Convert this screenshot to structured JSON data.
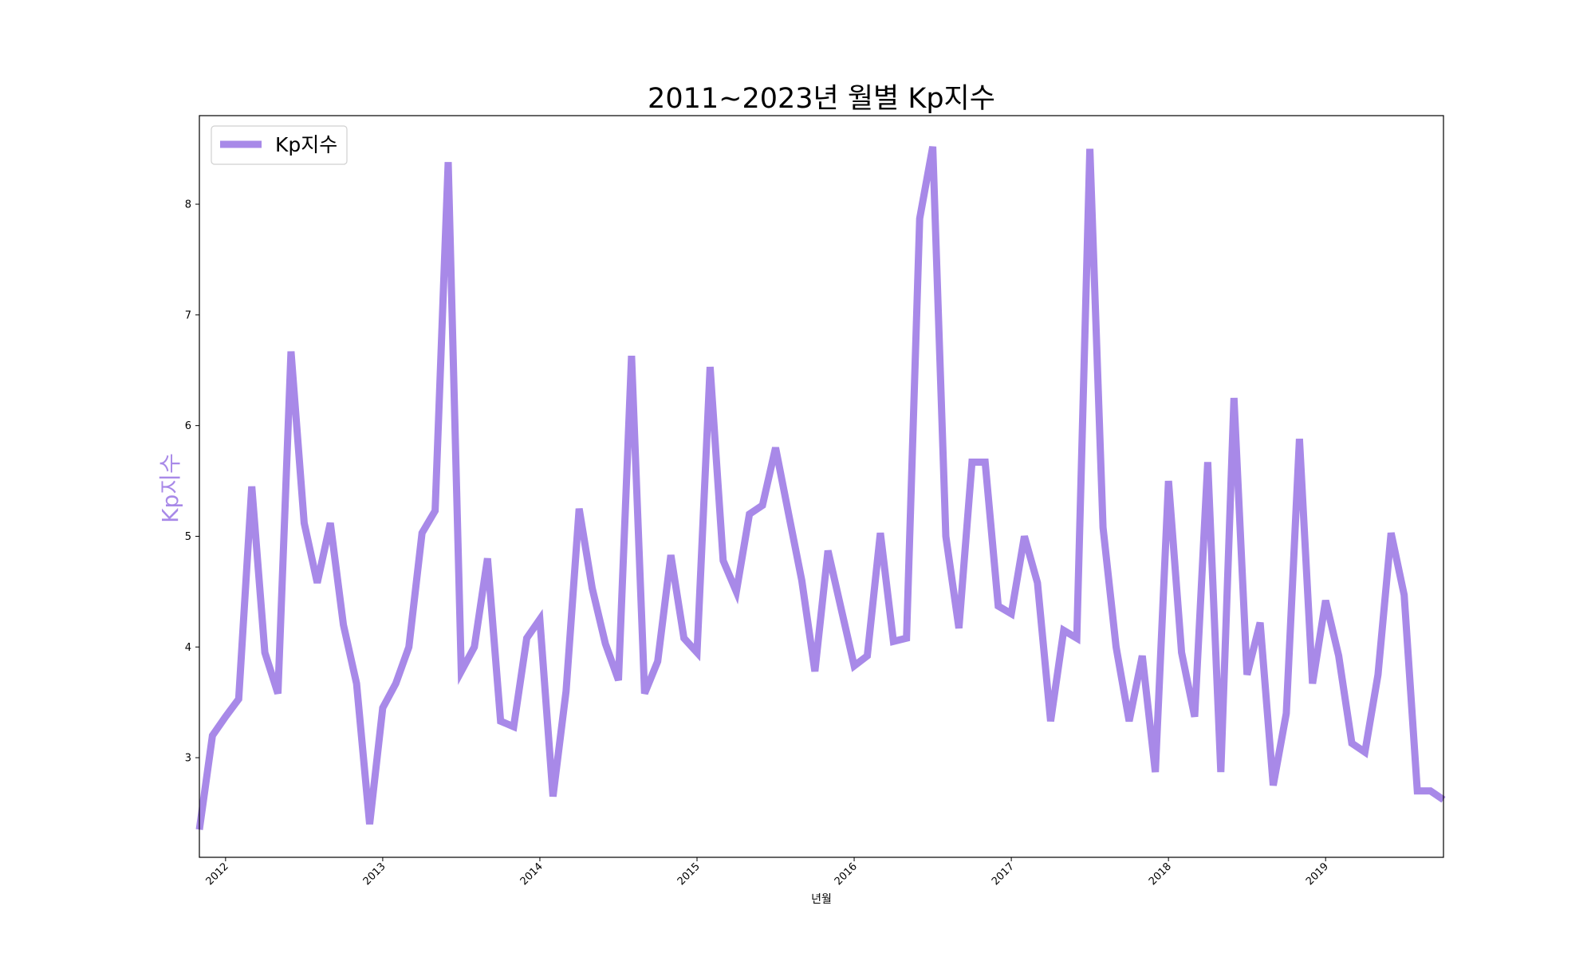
{
  "chart_data": {
    "type": "line",
    "title": "2011~2023년 월별 Kp지수",
    "xlabel": "년월",
    "ylabel": "Kp지수",
    "ylim": [
      2.1,
      8.8
    ],
    "xlim": [
      "2011-11",
      "2019-10"
    ],
    "grid": false,
    "legend_position": "top-left",
    "line_color": "#a889e8",
    "y_ticks": [
      3,
      4,
      5,
      6,
      7,
      8
    ],
    "x_ticks": [
      "2012",
      "2013",
      "2014",
      "2015",
      "2016",
      "2017",
      "2018",
      "2019"
    ],
    "series": [
      {
        "name": "Kp지수",
        "x": [
          "2011-11",
          "2011-12",
          "2012-01",
          "2012-02",
          "2012-03",
          "2012-04",
          "2012-05",
          "2012-06",
          "2012-07",
          "2012-08",
          "2012-09",
          "2012-10",
          "2012-11",
          "2012-12",
          "2013-01",
          "2013-02",
          "2013-03",
          "2013-04",
          "2013-05",
          "2013-06",
          "2013-07",
          "2013-08",
          "2013-09",
          "2013-10",
          "2013-11",
          "2013-12",
          "2014-01",
          "2014-02",
          "2014-03",
          "2014-04",
          "2014-05",
          "2014-06",
          "2014-07",
          "2014-08",
          "2014-09",
          "2014-10",
          "2014-11",
          "2014-12",
          "2015-01",
          "2015-02",
          "2015-03",
          "2015-04",
          "2015-05",
          "2015-06",
          "2015-07",
          "2015-08",
          "2015-09",
          "2015-10",
          "2015-11",
          "2015-12",
          "2016-01",
          "2016-02",
          "2016-03",
          "2016-04",
          "2016-05",
          "2016-06",
          "2016-07",
          "2016-08",
          "2016-09",
          "2016-10",
          "2016-11",
          "2016-12",
          "2017-01",
          "2017-02",
          "2017-03",
          "2017-04",
          "2017-05",
          "2017-06",
          "2017-07",
          "2017-08",
          "2017-09",
          "2017-10",
          "2017-11",
          "2017-12",
          "2018-01",
          "2018-02",
          "2018-03",
          "2018-04",
          "2018-05",
          "2018-06",
          "2018-07",
          "2018-08",
          "2018-09",
          "2018-10",
          "2018-11",
          "2018-12",
          "2019-01",
          "2019-02",
          "2019-03",
          "2019-04",
          "2019-05",
          "2019-06",
          "2019-07",
          "2019-08",
          "2019-09",
          "2019-10"
        ],
        "values": [
          2.35,
          3.2,
          3.37,
          3.53,
          5.45,
          3.95,
          3.58,
          6.67,
          5.12,
          4.58,
          5.12,
          4.2,
          3.67,
          2.4,
          3.45,
          3.67,
          4.0,
          5.03,
          5.23,
          8.38,
          3.78,
          4.0,
          4.8,
          3.33,
          3.28,
          4.08,
          4.25,
          2.65,
          3.6,
          5.25,
          4.53,
          4.03,
          3.7,
          6.63,
          3.58,
          3.87,
          4.83,
          4.08,
          3.95,
          6.53,
          4.78,
          4.5,
          5.2,
          5.28,
          5.8,
          5.2,
          4.6,
          3.78,
          4.87,
          4.35,
          3.83,
          3.92,
          5.03,
          4.05,
          4.08,
          7.87,
          8.52,
          5.0,
          4.17,
          5.67,
          5.67,
          4.37,
          4.3,
          5.0,
          4.58,
          3.33,
          4.15,
          4.08,
          8.5,
          5.08,
          4.0,
          3.33,
          3.92,
          2.87,
          5.5,
          3.95,
          3.37,
          5.67,
          2.87,
          6.25,
          3.75,
          4.22,
          2.75,
          3.4,
          5.88,
          3.67,
          4.42,
          3.92,
          3.13,
          3.05,
          3.75,
          5.03,
          4.47,
          2.7,
          2.7,
          2.62
        ]
      }
    ]
  }
}
